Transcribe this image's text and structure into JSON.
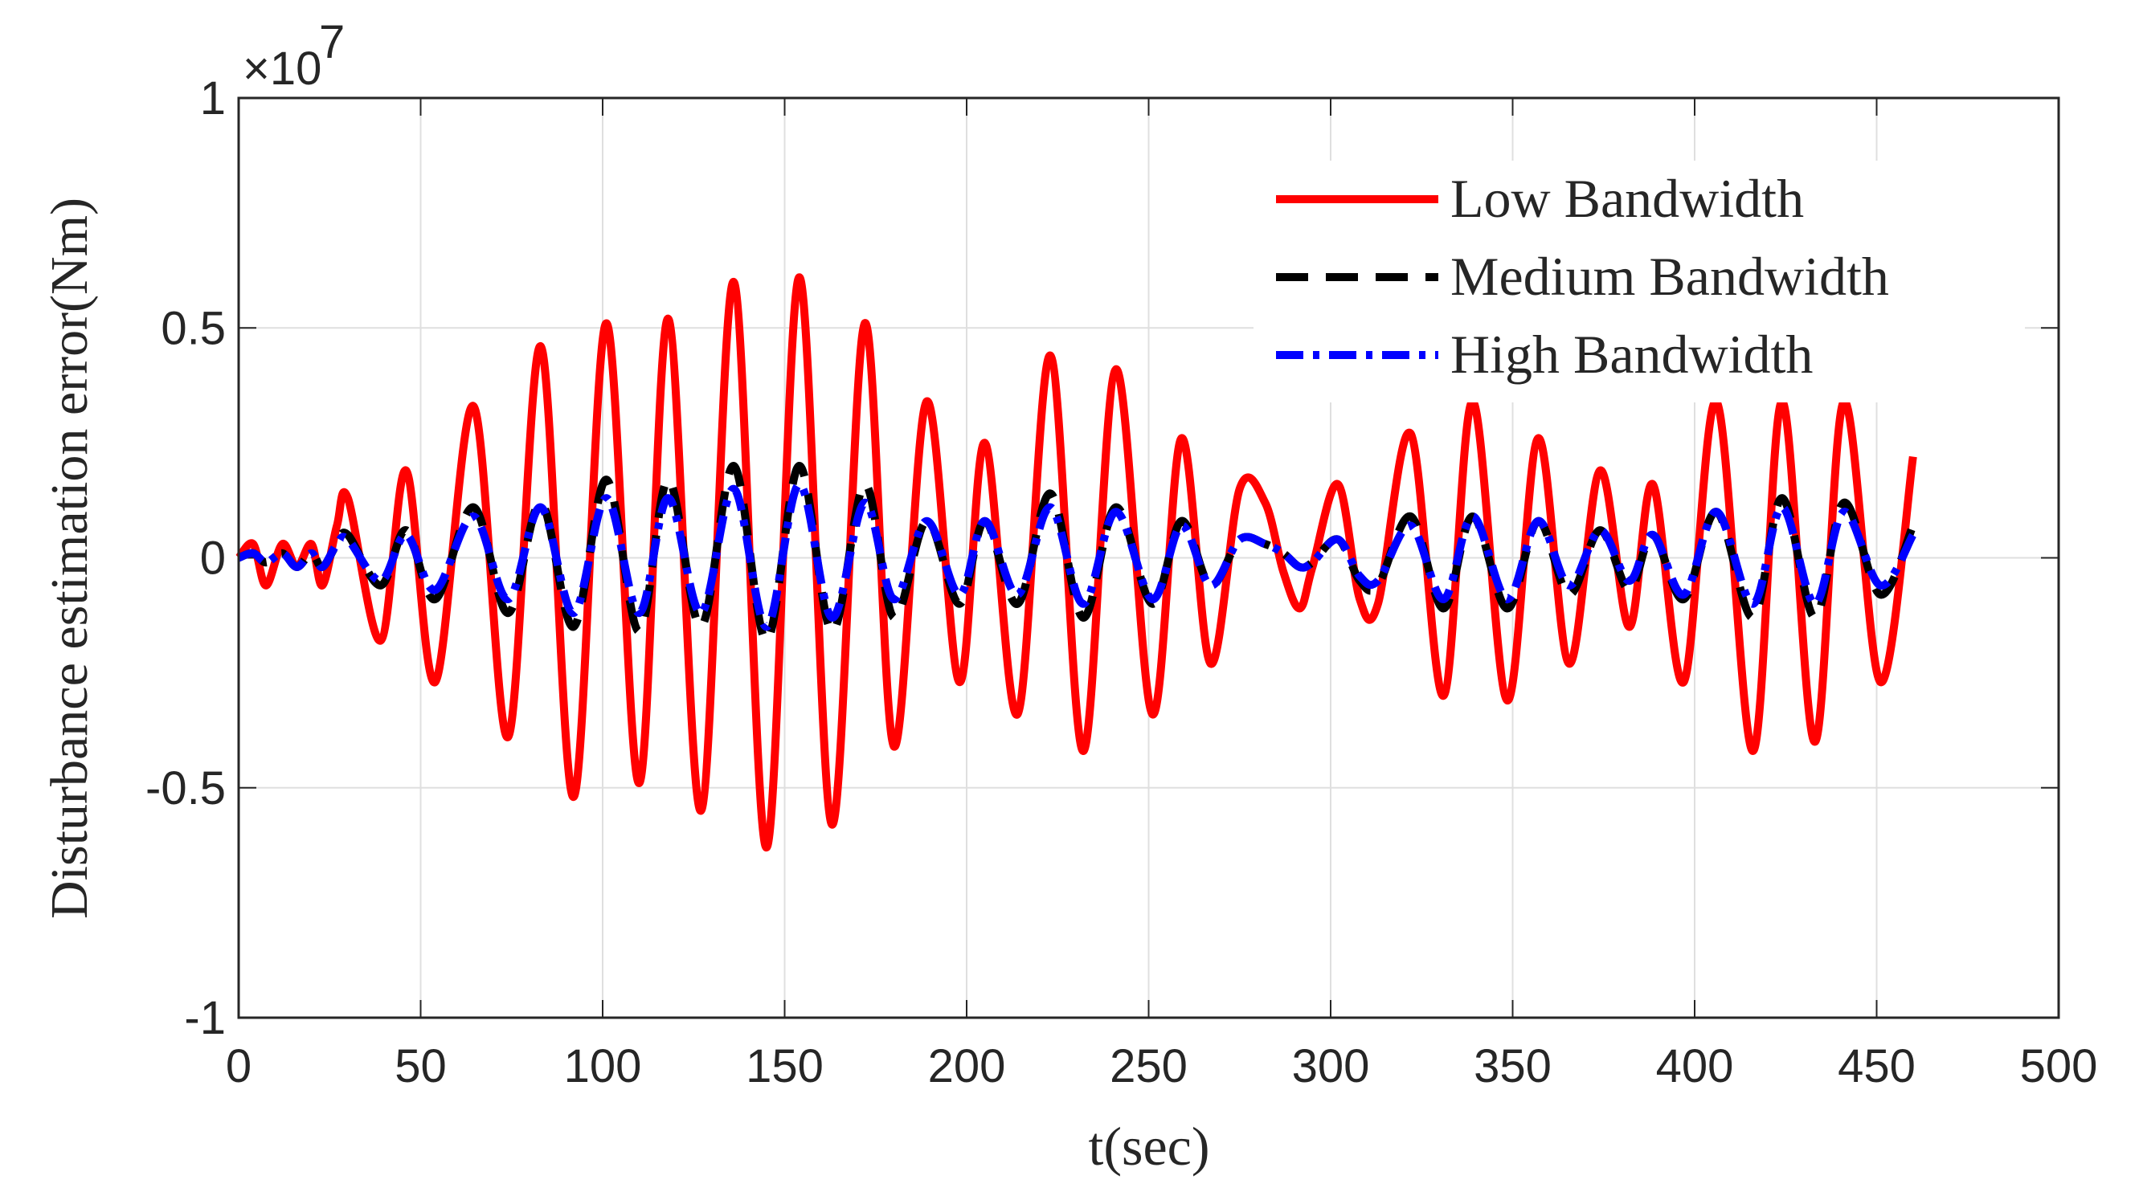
{
  "chart_data": {
    "type": "line",
    "xlabel": "t(sec)",
    "ylabel": "Disturbance estimation error(Nm)",
    "y_scale_base": "×10",
    "y_scale_exponent": "7",
    "x": [
      0,
      4,
      7.5,
      12,
      16,
      20,
      23,
      27,
      30,
      39,
      46,
      54,
      64.5,
      74,
      83,
      92,
      101,
      110,
      118,
      127,
      136,
      145,
      154,
      163,
      172,
      180,
      189,
      198,
      205,
      214,
      223,
      232,
      241,
      251,
      259,
      267,
      275,
      282,
      287,
      291.5,
      295,
      302,
      308,
      313,
      322,
      331,
      339,
      348.5,
      357,
      365.5,
      374,
      382,
      388.5,
      397,
      406,
      416,
      424,
      433,
      441,
      451,
      460
    ],
    "series": [
      {
        "name": "Low Bandwidth",
        "color": "#ff0000",
        "dash": "solid",
        "values": [
          0,
          0.03,
          -0.06,
          0.03,
          -0.02,
          0.03,
          -0.06,
          0.07,
          0.13,
          -0.18,
          0.19,
          -0.27,
          0.33,
          -0.39,
          0.46,
          -0.52,
          0.51,
          -0.49,
          0.52,
          -0.55,
          0.6,
          -0.63,
          0.61,
          -0.58,
          0.51,
          -0.41,
          0.34,
          -0.27,
          0.25,
          -0.34,
          0.44,
          -0.42,
          0.41,
          -0.34,
          0.26,
          -0.23,
          0.15,
          0.12,
          -0.03,
          -0.11,
          -0.02,
          0.16,
          -0.09,
          -0.1,
          0.27,
          -0.3,
          0.34,
          -0.31,
          0.26,
          -0.23,
          0.19,
          -0.15,
          0.16,
          -0.27,
          0.34,
          -0.42,
          0.34,
          -0.4,
          0.34,
          -0.27,
          0.22
        ]
      },
      {
        "name": "Medium Bandwidth",
        "color": "#000000",
        "dash": "dashed",
        "values": [
          0,
          0.01,
          -0.01,
          0.01,
          -0.02,
          0.01,
          -0.02,
          0.03,
          0.05,
          -0.06,
          0.06,
          -0.09,
          0.11,
          -0.12,
          0.12,
          -0.15,
          0.17,
          -0.16,
          0.17,
          -0.15,
          0.2,
          -0.18,
          0.2,
          -0.16,
          0.16,
          -0.13,
          0.08,
          -0.1,
          0.08,
          -0.1,
          0.14,
          -0.13,
          0.11,
          -0.1,
          0.08,
          -0.06,
          0.04,
          0.03,
          0.01,
          -0.02,
          -0.01,
          0.04,
          -0.05,
          -0.06,
          0.09,
          -0.11,
          0.09,
          -0.11,
          0.08,
          -0.08,
          0.06,
          -0.07,
          0.05,
          -0.09,
          0.1,
          -0.13,
          0.13,
          -0.13,
          0.12,
          -0.08,
          0.07
        ]
      },
      {
        "name": "High Bandwidth",
        "color": "#0000ff",
        "dash": "dashdot",
        "values": [
          0,
          0.01,
          -0.01,
          0.01,
          -0.02,
          0.01,
          -0.02,
          0.03,
          0.04,
          -0.05,
          0.05,
          -0.07,
          0.09,
          -0.09,
          0.11,
          -0.12,
          0.13,
          -0.12,
          0.13,
          -0.12,
          0.15,
          -0.15,
          0.16,
          -0.13,
          0.12,
          -0.09,
          0.08,
          -0.08,
          0.08,
          -0.08,
          0.11,
          -0.1,
          0.1,
          -0.09,
          0.07,
          -0.06,
          0.04,
          0.03,
          0.01,
          -0.02,
          -0.01,
          0.04,
          -0.04,
          -0.05,
          0.07,
          -0.09,
          0.09,
          -0.09,
          0.08,
          -0.06,
          0.06,
          -0.05,
          0.05,
          -0.08,
          0.1,
          -0.1,
          0.11,
          -0.1,
          0.1,
          -0.06,
          0.05
        ]
      }
    ],
    "xlim": [
      0,
      500
    ],
    "ylim": [
      -1,
      1
    ],
    "xticks": [
      0,
      50,
      100,
      150,
      200,
      250,
      300,
      350,
      400,
      450,
      500
    ],
    "yticks": [
      -1,
      -0.5,
      0,
      0.5,
      1
    ],
    "grid": true,
    "legend": "upper right"
  }
}
